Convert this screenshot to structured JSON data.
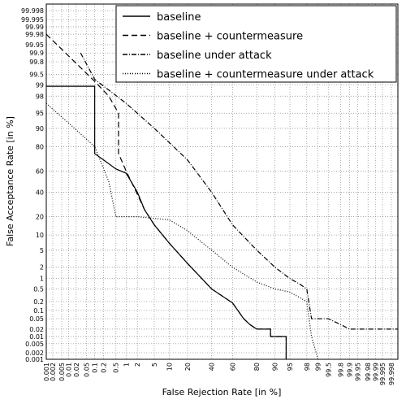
{
  "chart_data": {
    "type": "line",
    "scale": "probit",
    "x_label": "False Rejection Rate [in %]",
    "y_label": "False Acceptance Rate [in %]",
    "xlim": [
      0.001,
      99.999
    ],
    "ylim": [
      0.001,
      99.999
    ],
    "xticks": [
      0.001,
      0.002,
      0.005,
      0.01,
      0.02,
      0.05,
      0.1,
      0.2,
      0.5,
      1,
      2,
      5,
      10,
      20,
      40,
      60,
      80,
      90,
      95,
      98,
      99,
      99.5,
      99.8,
      99.9,
      99.95,
      99.98,
      99.99,
      99.995,
      99.998
    ],
    "yticks": [
      0.001,
      0.002,
      0.005,
      0.01,
      0.02,
      0.05,
      0.1,
      0.2,
      0.5,
      1,
      2,
      5,
      10,
      20,
      40,
      60,
      80,
      90,
      95,
      98,
      99,
      99.5,
      99.8,
      99.9,
      99.95,
      99.98,
      99.99,
      99.995,
      99.998
    ],
    "grid": true,
    "legend": "upper right",
    "series": [
      {
        "name": "baseline",
        "color": "#000000",
        "linestyle": "solid",
        "x": [
          0.001,
          0.1,
          0.1,
          0.2,
          0.5,
          1,
          2,
          3,
          5,
          10,
          20,
          40,
          60,
          70,
          75,
          80,
          88,
          88,
          94,
          94
        ],
        "values": [
          98.9,
          98.9,
          75,
          70,
          62,
          58,
          40,
          25,
          15,
          7,
          2.5,
          0.5,
          0.18,
          0.05,
          0.03,
          0.02,
          0.02,
          0.01,
          0.01,
          0.001
        ]
      },
      {
        "name": "baseline + countermeasure",
        "color": "#000000",
        "linestyle": "dashed",
        "x": [
          0.001,
          0.1,
          0.3,
          0.6,
          0.6,
          1,
          2,
          3,
          5,
          10,
          20,
          40,
          60,
          70,
          75,
          80,
          88,
          88,
          94,
          94
        ],
        "values": [
          99.98,
          99.2,
          98,
          95,
          75,
          60,
          38,
          25,
          15,
          7,
          2.5,
          0.5,
          0.18,
          0.05,
          0.03,
          0.02,
          0.02,
          0.01,
          0.01,
          0.001
        ]
      },
      {
        "name": "baseline under attack",
        "color": "#000000",
        "linestyle": "dashdot",
        "x": [
          0.03,
          0.1,
          1,
          5,
          20,
          40,
          60,
          80,
          90,
          95,
          97,
          98,
          98.5,
          99.5,
          99.8,
          99.9,
          99.999
        ],
        "values": [
          99.9,
          99.3,
          97,
          90,
          70,
          40,
          15,
          5,
          2,
          1,
          0.7,
          0.5,
          0.05,
          0.05,
          0.03,
          0.02,
          0.02
        ]
      },
      {
        "name": "baseline + countermeasure under attack",
        "color": "#000000",
        "linestyle": "dotted",
        "x": [
          0.001,
          0.01,
          0.1,
          0.3,
          0.5,
          2,
          10,
          20,
          40,
          60,
          80,
          90,
          95,
          98,
          98.5,
          99
        ],
        "values": [
          97,
          92,
          80,
          50,
          20,
          20,
          18,
          12,
          5,
          2,
          0.8,
          0.5,
          0.4,
          0.2,
          0.01,
          0.001
        ]
      }
    ]
  }
}
